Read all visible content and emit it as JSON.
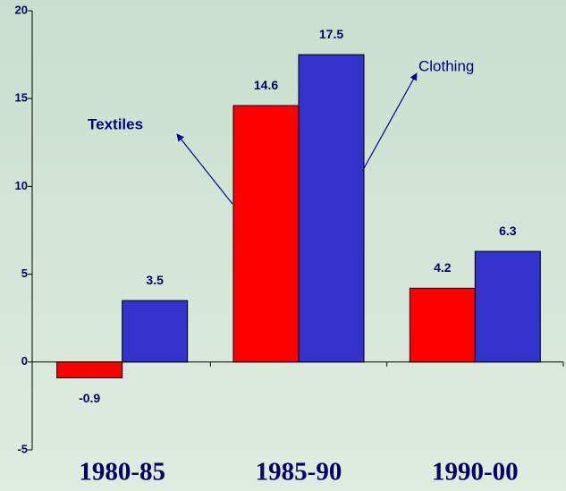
{
  "chart_data": {
    "type": "bar",
    "categories": [
      "1980-85",
      "1985-90",
      "1990-00"
    ],
    "series": [
      {
        "name": "Textiles",
        "color": "#ff0000",
        "values": [
          -0.9,
          14.6,
          4.2
        ]
      },
      {
        "name": "Clothing",
        "color": "#3333cc",
        "values": [
          3.5,
          17.5,
          6.3
        ]
      }
    ],
    "ylim": [
      -5,
      20
    ],
    "yticks": [
      -5,
      0,
      5,
      10,
      15,
      20
    ],
    "grid": false
  }
}
